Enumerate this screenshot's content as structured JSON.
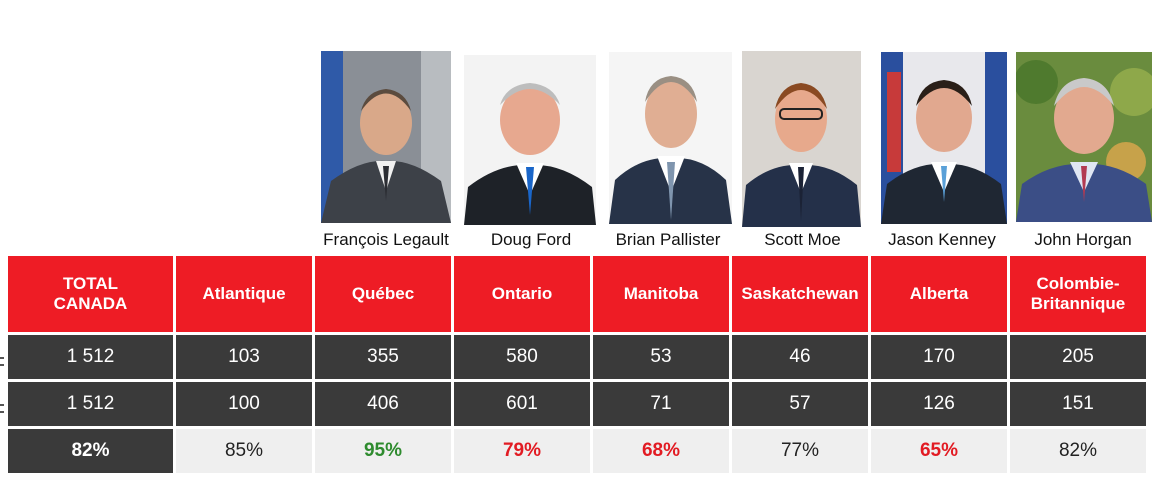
{
  "premiers": [
    {
      "name": "François Legault",
      "icon": "portrait-francois-legault"
    },
    {
      "name": "Doug Ford",
      "icon": "portrait-doug-ford"
    },
    {
      "name": "Brian Pallister",
      "icon": "portrait-brian-pallister"
    },
    {
      "name": "Scott Moe",
      "icon": "portrait-scott-moe"
    },
    {
      "name": "Jason Kenney",
      "icon": "portrait-jason-kenney"
    },
    {
      "name": "John Horgan",
      "icon": "portrait-john-horgan"
    }
  ],
  "table": {
    "headers": [
      "TOTAL\nCANADA",
      "Atlantique",
      "Québec",
      "Ontario",
      "Manitoba",
      "Saskatchewan",
      "Alberta",
      "Colombie-\nBritannique"
    ],
    "row1": [
      "1 512",
      "103",
      "355",
      "580",
      "53",
      "46",
      "170",
      "205"
    ],
    "row2": [
      "1 512",
      "100",
      "406",
      "601",
      "71",
      "57",
      "126",
      "151"
    ],
    "row3": [
      "82%",
      "85%",
      "95%",
      "79%",
      "68%",
      "77%",
      "65%",
      "82%"
    ]
  },
  "colors": {
    "header_red": "#ee1c25",
    "dark_cell": "#3a3a3a",
    "light_cell": "#efefef",
    "positive_green": "#2e8b2e",
    "negative_red": "#e21b23"
  }
}
